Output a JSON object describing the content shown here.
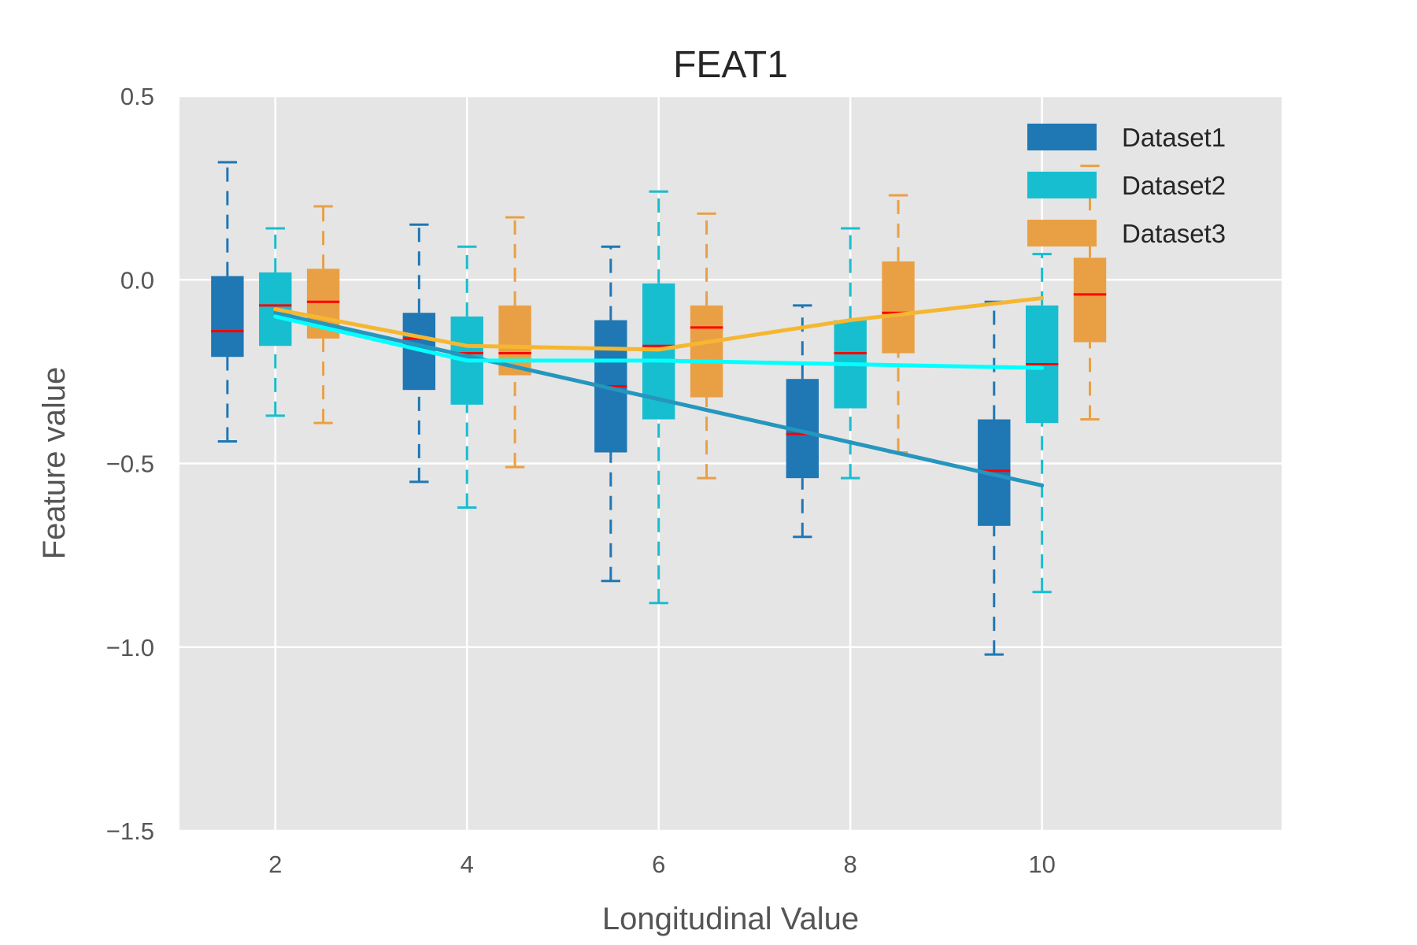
{
  "chart_data": {
    "type": "box",
    "title": "FEAT1",
    "xlabel": "Longitudinal Value",
    "ylabel": "Feature value",
    "xlim": [
      1.0,
      12.5
    ],
    "ylim": [
      -1.5,
      0.5
    ],
    "xticks": [
      2,
      4,
      6,
      8,
      10
    ],
    "xtick_labels": [
      "2",
      "4",
      "6",
      "8",
      "10"
    ],
    "yticks": [
      0.5,
      0.0,
      -0.5,
      -1.0,
      -1.5
    ],
    "ytick_labels": [
      "0.5",
      "0.0",
      "−0.5",
      "−1.0",
      "−1.5"
    ],
    "grid": true,
    "legend": "top-right",
    "background": "#e5e5e5",
    "median_color": "#ff0000",
    "series": [
      {
        "name": "Dataset1",
        "color": "#1f77b4",
        "trend_color": "#2596be",
        "box_offset": -0.5,
        "x": [
          2,
          4,
          6,
          8,
          10
        ],
        "whisker_low": [
          -0.44,
          -0.55,
          -0.82,
          -0.7,
          -1.02
        ],
        "q1": [
          -0.21,
          -0.3,
          -0.47,
          -0.54,
          -0.67
        ],
        "median": [
          -0.14,
          -0.16,
          -0.29,
          -0.42,
          -0.52
        ],
        "q3": [
          0.01,
          -0.09,
          -0.11,
          -0.27,
          -0.38
        ],
        "whisker_high": [
          0.32,
          0.15,
          0.09,
          -0.07,
          -0.06
        ],
        "trend_x": [
          2,
          10
        ],
        "trend_y": [
          -0.09,
          -0.56
        ]
      },
      {
        "name": "Dataset2",
        "color": "#17becf",
        "trend_color": "#00ffff",
        "box_offset": 0.0,
        "x": [
          2,
          4,
          6,
          8,
          10
        ],
        "whisker_low": [
          -0.37,
          -0.62,
          -0.88,
          -0.54,
          -0.85
        ],
        "q1": [
          -0.18,
          -0.34,
          -0.38,
          -0.35,
          -0.39
        ],
        "median": [
          -0.07,
          -0.2,
          -0.18,
          -0.2,
          -0.23
        ],
        "q3": [
          0.02,
          -0.1,
          -0.01,
          -0.11,
          -0.07
        ],
        "whisker_high": [
          0.14,
          0.09,
          0.24,
          0.14,
          0.07
        ],
        "trend_x": [
          2,
          4,
          6,
          8,
          10
        ],
        "trend_y": [
          -0.1,
          -0.22,
          -0.22,
          -0.23,
          -0.24
        ]
      },
      {
        "name": "Dataset3",
        "color": "#e9a045",
        "trend_color": "#f5b731",
        "box_offset": 0.5,
        "x": [
          2,
          4,
          6,
          8,
          10
        ],
        "whisker_low": [
          -0.39,
          -0.51,
          -0.54,
          -0.47,
          -0.38
        ],
        "q1": [
          -0.16,
          -0.26,
          -0.32,
          -0.2,
          -0.17
        ],
        "median": [
          -0.06,
          -0.2,
          -0.13,
          -0.09,
          -0.04
        ],
        "q3": [
          0.03,
          -0.07,
          -0.07,
          0.05,
          0.06
        ],
        "whisker_high": [
          0.2,
          0.17,
          0.18,
          0.23,
          0.31
        ],
        "trend_x": [
          2,
          4,
          6,
          8,
          10
        ],
        "trend_y": [
          -0.08,
          -0.18,
          -0.19,
          -0.11,
          -0.05
        ]
      }
    ]
  }
}
